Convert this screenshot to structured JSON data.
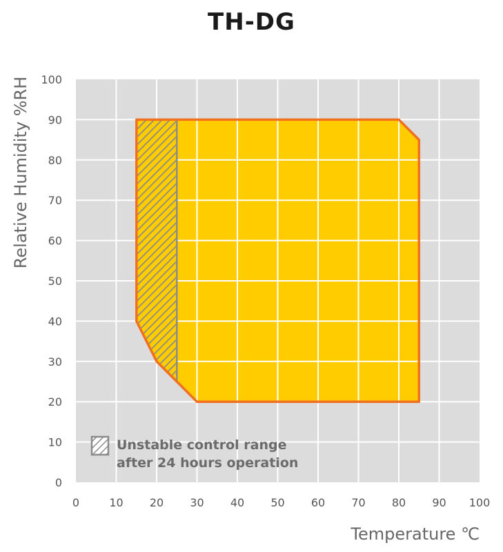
{
  "title": "TH-DG",
  "chart_data": {
    "type": "area",
    "title": "TH-DG",
    "xlabel": "Temperature ℃",
    "ylabel": "Relative Humidity %RH",
    "xlim": [
      0,
      100
    ],
    "ylim": [
      0,
      100
    ],
    "x_ticks": [
      0,
      10,
      20,
      30,
      40,
      50,
      60,
      70,
      80,
      90,
      100
    ],
    "y_ticks": [
      0,
      10,
      20,
      30,
      40,
      50,
      60,
      70,
      80,
      90,
      100
    ],
    "grid": true,
    "operating_range": {
      "points": [
        [
          15,
          90
        ],
        [
          80,
          90
        ],
        [
          85,
          85
        ],
        [
          85,
          20
        ],
        [
          30,
          20
        ],
        [
          20,
          30
        ],
        [
          15,
          40
        ]
      ],
      "fill_color": "#FFCC00",
      "edge_color": "#F07020"
    },
    "unstable_range": {
      "label": "Unstable control range after 24 hours operation",
      "points": [
        [
          15,
          90
        ],
        [
          25,
          90
        ],
        [
          25,
          25
        ],
        [
          20,
          30
        ],
        [
          15,
          40
        ]
      ],
      "hatch_color": "#8a8a8a"
    },
    "legend": {
      "line1": "Unstable control range",
      "line2": "after 24 hours operation",
      "placement": "bottom-left"
    },
    "plot_background": "#DCDCDC"
  }
}
